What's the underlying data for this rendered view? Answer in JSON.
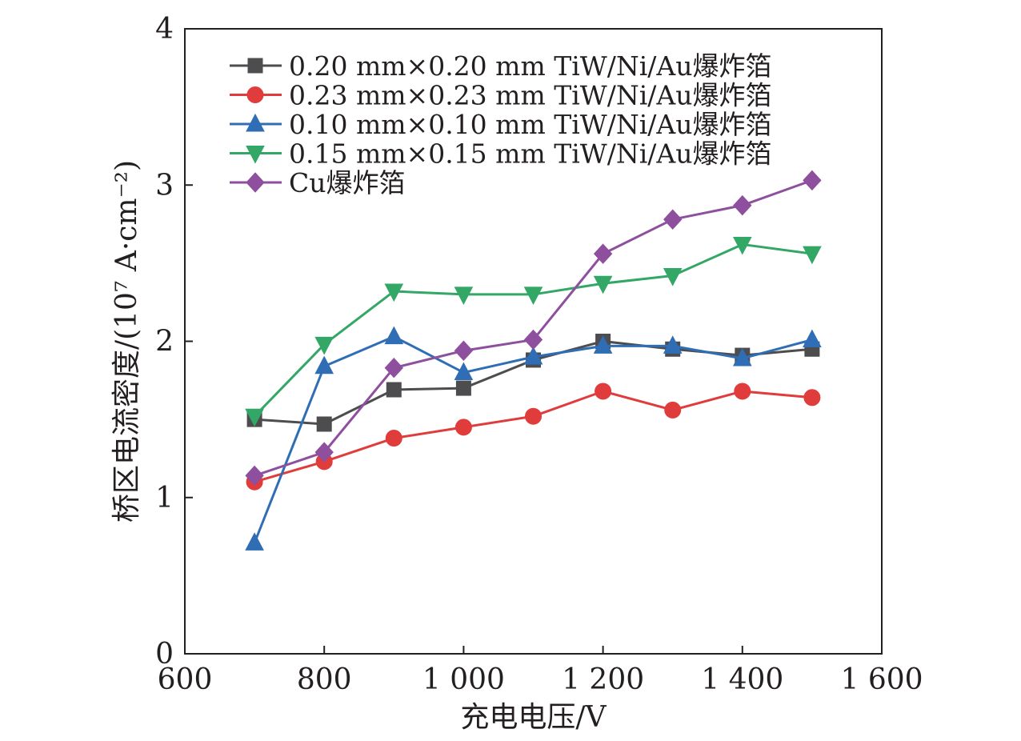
{
  "chart_data": {
    "type": "line",
    "title": "",
    "xlabel": "充电电压/V",
    "ylabel": "桥区电流密度/(10⁷ A·cm⁻²)",
    "xlim": [
      600,
      1600
    ],
    "ylim": [
      0,
      4
    ],
    "x_ticks": [
      600,
      800,
      1000,
      1200,
      1400,
      1600
    ],
    "x_tick_labels": [
      "600",
      "800",
      "1 000",
      "1 200",
      "1 400",
      "1 600"
    ],
    "y_ticks": [
      0,
      1,
      2,
      3,
      4
    ],
    "y_tick_labels": [
      "0",
      "1",
      "2",
      "3",
      "4"
    ],
    "grid": false,
    "legend_position": "top-left",
    "x": [
      700,
      800,
      900,
      1000,
      1100,
      1200,
      1300,
      1400,
      1500
    ],
    "series": [
      {
        "name": "0.20 mm×0.20 mm TiW/Ni/Au爆炸箔",
        "color": "#4d4d4f",
        "marker": "square",
        "values": [
          1.5,
          1.47,
          1.69,
          1.7,
          1.88,
          2.0,
          1.95,
          1.91,
          1.95
        ]
      },
      {
        "name": "0.23 mm×0.23 mm TiW/Ni/Au爆炸箔",
        "color": "#e03c3c",
        "marker": "circle",
        "values": [
          1.1,
          1.23,
          1.38,
          1.45,
          1.52,
          1.68,
          1.56,
          1.68,
          1.64
        ]
      },
      {
        "name": "0.10 mm×0.10 mm TiW/Ni/Au爆炸箔",
        "color": "#2f6db5",
        "marker": "triangle-up",
        "values": [
          0.71,
          1.84,
          2.03,
          1.8,
          1.9,
          1.97,
          1.97,
          1.89,
          2.01
        ]
      },
      {
        "name": "0.15 mm×0.15 mm TiW/Ni/Au爆炸箔",
        "color": "#33a765",
        "marker": "triangle-down",
        "values": [
          1.52,
          1.98,
          2.32,
          2.3,
          2.3,
          2.37,
          2.42,
          2.62,
          2.56
        ]
      },
      {
        "name": "Cu爆炸箔",
        "color": "#8d4f9e",
        "marker": "diamond",
        "values": [
          1.14,
          1.29,
          1.83,
          1.94,
          2.01,
          2.56,
          2.78,
          2.87,
          3.03
        ]
      }
    ]
  }
}
